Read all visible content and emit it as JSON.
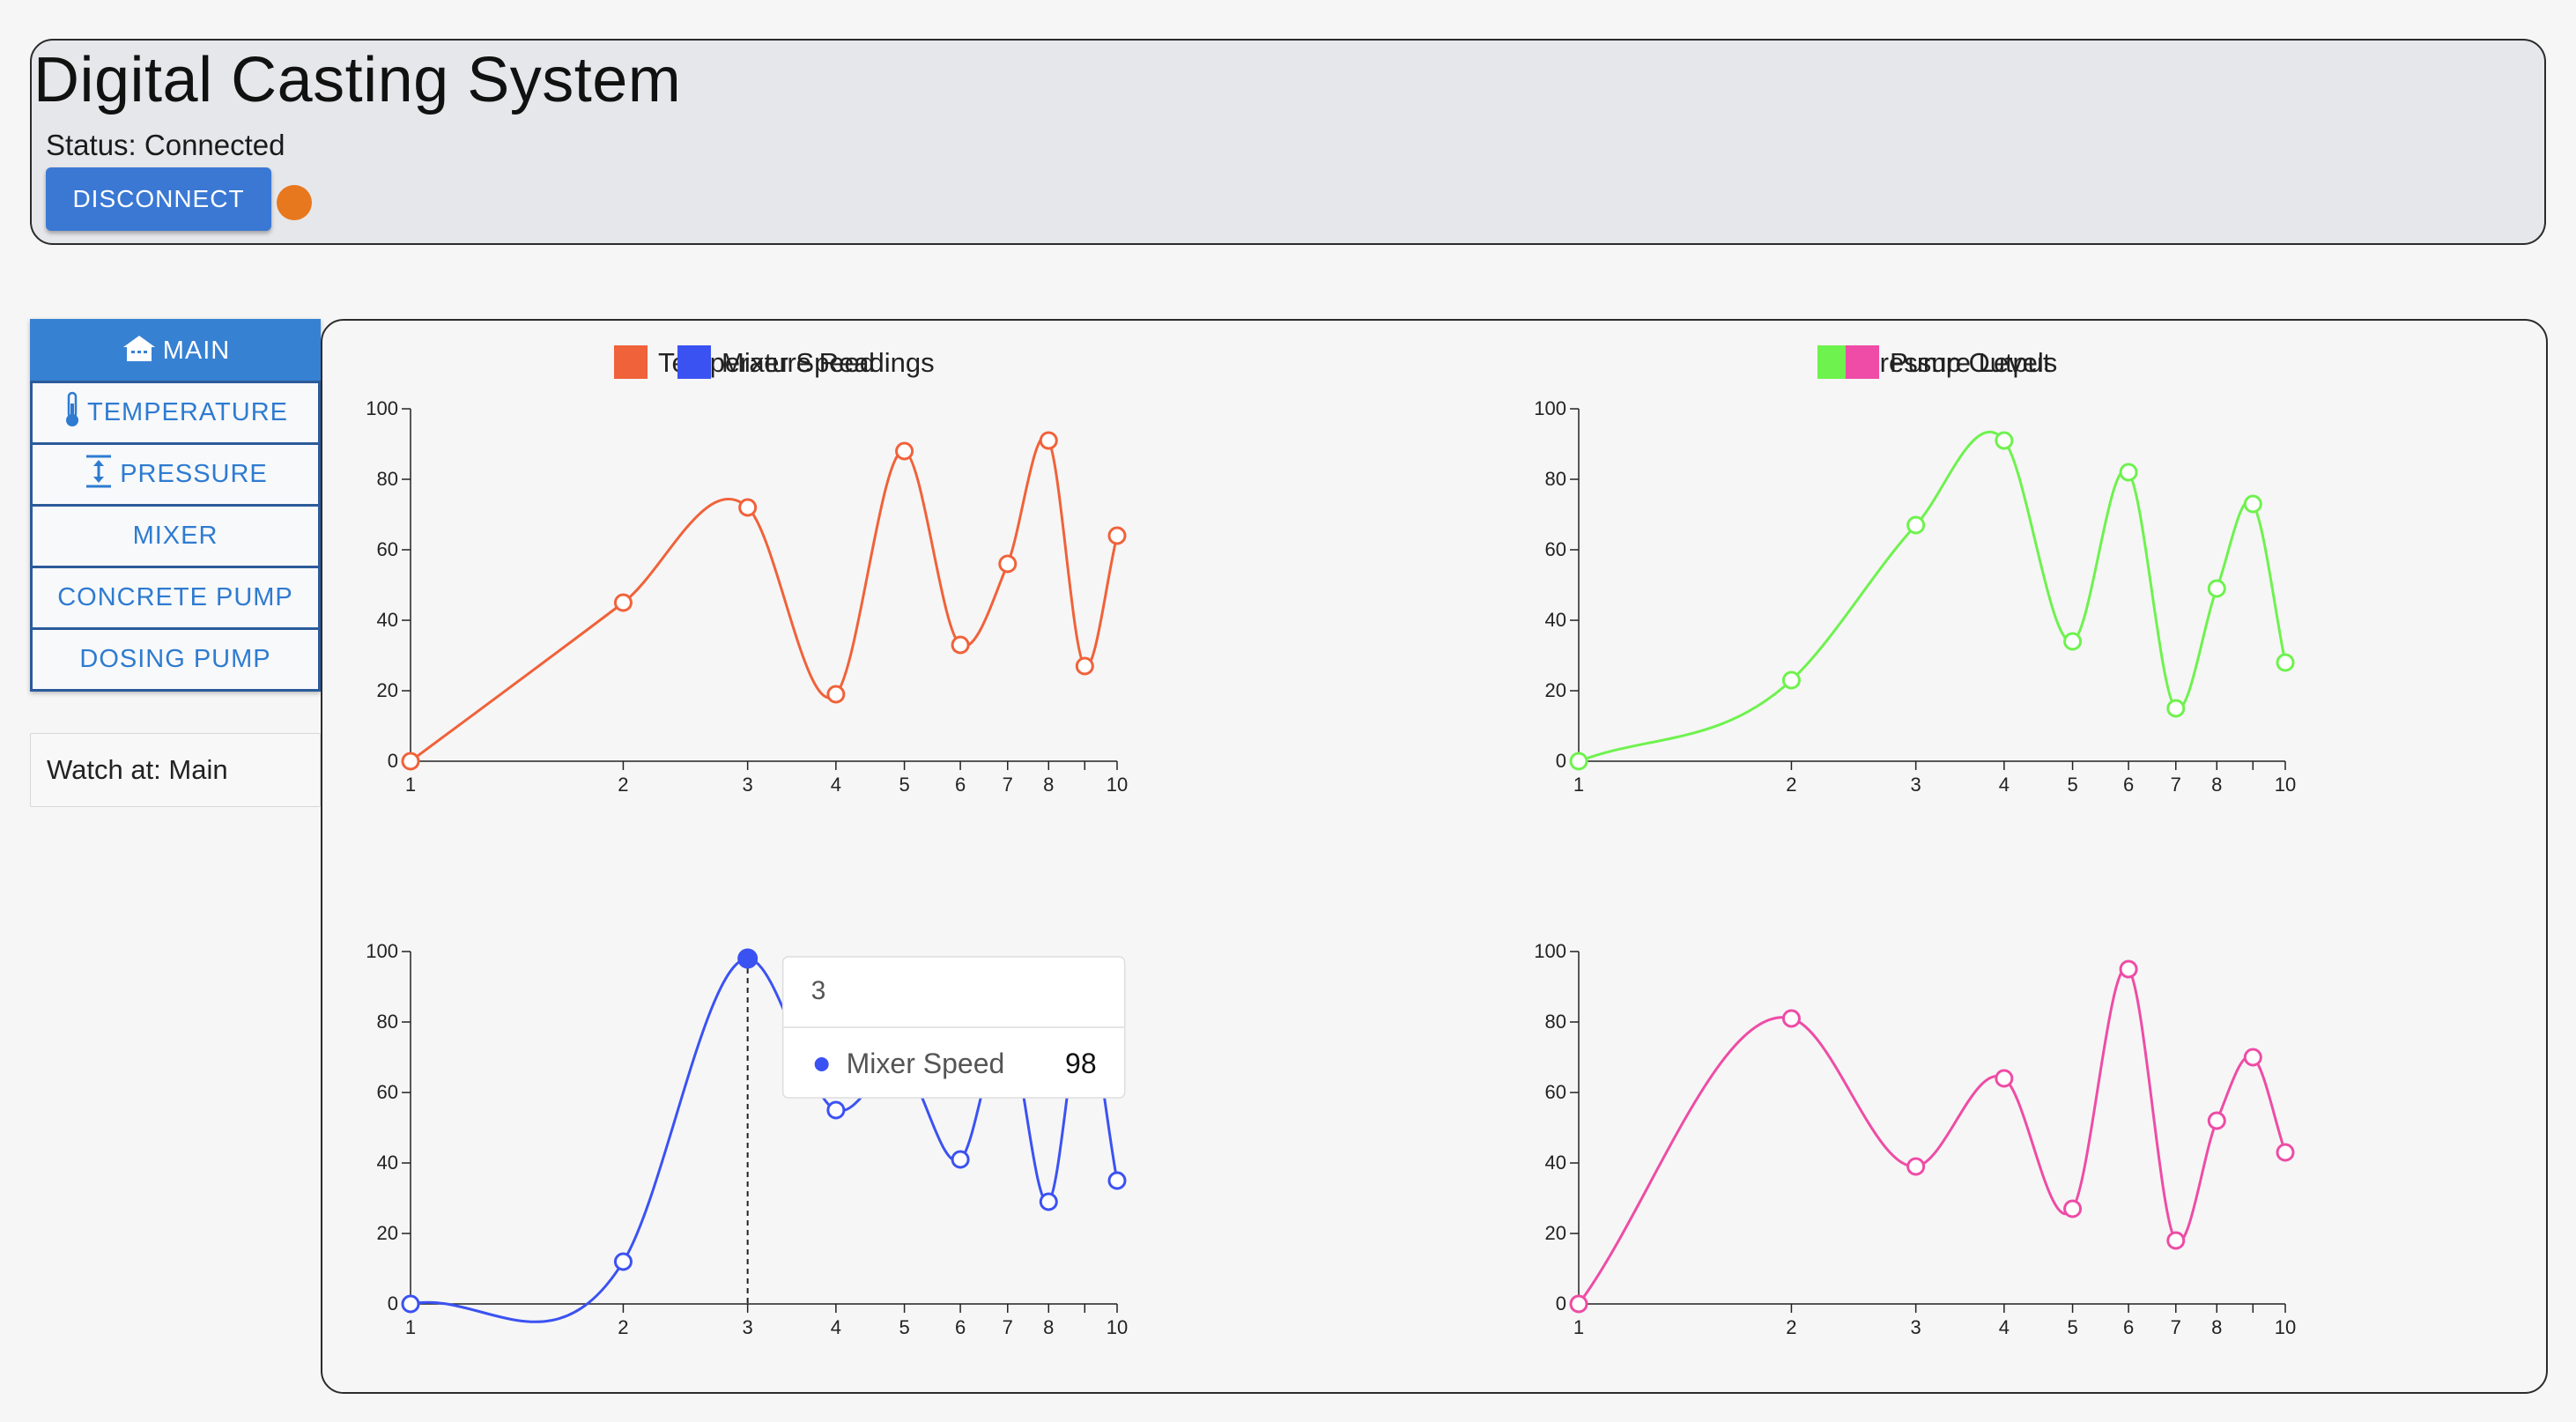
{
  "header": {
    "title": "Digital Casting System",
    "status": "Status: Connected",
    "disconnect_label": "DISCONNECT",
    "status_dot_color": "#e8781e"
  },
  "sidebar": {
    "items": [
      {
        "label": "MAIN",
        "icon": "home-icon",
        "active": true
      },
      {
        "label": "TEMPERATURE",
        "icon": "thermometer-icon",
        "active": false
      },
      {
        "label": "PRESSURE",
        "icon": "pressure-icon",
        "active": false
      },
      {
        "label": "MIXER",
        "icon": null,
        "active": false
      },
      {
        "label": "CONCRETE PUMP",
        "icon": null,
        "active": false
      },
      {
        "label": "DOSING PUMP",
        "icon": null,
        "active": false
      }
    ],
    "watch": "Watch at: Main"
  },
  "chart_data": [
    {
      "type": "line",
      "title": "Temperature Readings",
      "x_scale": "log",
      "x": [
        1,
        2,
        3,
        4,
        5,
        6,
        7,
        8,
        9,
        10
      ],
      "x_tick_labels": [
        "1",
        "2",
        "3",
        "4",
        "5",
        "6",
        "7",
        "8",
        "",
        "10"
      ],
      "ylim": [
        0,
        100
      ],
      "y_ticks": [
        0,
        20,
        40,
        60,
        80,
        100
      ],
      "series": [
        {
          "name": "Temperature Readings",
          "color": "#f0623a",
          "values": [
            0,
            45,
            72,
            19,
            88,
            33,
            56,
            91,
            27,
            64
          ]
        }
      ]
    },
    {
      "type": "line",
      "title": "Pressure Levels",
      "x_scale": "log",
      "x": [
        1,
        2,
        3,
        4,
        5,
        6,
        7,
        8,
        9,
        10
      ],
      "x_tick_labels": [
        "1",
        "2",
        "3",
        "4",
        "5",
        "6",
        "7",
        "8",
        "",
        "10"
      ],
      "ylim": [
        0,
        100
      ],
      "y_ticks": [
        0,
        20,
        40,
        60,
        80,
        100
      ],
      "series": [
        {
          "name": "Pressure Levels",
          "color": "#6ef24e",
          "values": [
            0,
            23,
            67,
            91,
            34,
            82,
            15,
            49,
            73,
            28
          ]
        }
      ]
    },
    {
      "type": "line",
      "title": "Mixer Speed",
      "x_scale": "log",
      "x": [
        1,
        2,
        3,
        4,
        5,
        6,
        7,
        8,
        9,
        10
      ],
      "x_tick_labels": [
        "1",
        "2",
        "3",
        "4",
        "5",
        "6",
        "7",
        "8",
        "",
        "10"
      ],
      "ylim": [
        0,
        100
      ],
      "y_ticks": [
        0,
        20,
        40,
        60,
        80,
        100
      ],
      "series": [
        {
          "name": "Mixer Speed",
          "color": "#3b52f2",
          "values": [
            0,
            12,
            98,
            55,
            67,
            41,
            78,
            29,
            84,
            35
          ]
        }
      ],
      "tooltip": {
        "x_label": "3",
        "series": "Mixer Speed",
        "value": "98"
      }
    },
    {
      "type": "line",
      "title": "Pump Output",
      "x_scale": "log",
      "x": [
        1,
        2,
        3,
        4,
        5,
        6,
        7,
        8,
        9,
        10
      ],
      "x_tick_labels": [
        "1",
        "2",
        "3",
        "4",
        "5",
        "6",
        "7",
        "8",
        "",
        "10"
      ],
      "ylim": [
        0,
        100
      ],
      "y_ticks": [
        0,
        20,
        40,
        60,
        80,
        100
      ],
      "series": [
        {
          "name": "Pump Output",
          "color": "#ee4ca6",
          "values": [
            0,
            81,
            39,
            64,
            27,
            95,
            18,
            52,
            70,
            43
          ]
        }
      ]
    }
  ]
}
